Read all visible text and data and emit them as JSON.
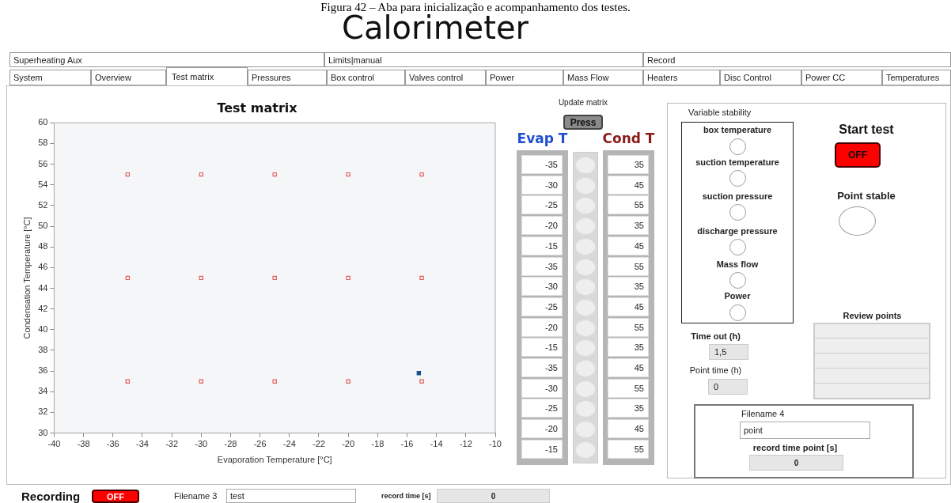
{
  "chart_data": [
    {
      "type": "scatter",
      "title": "Test matrix",
      "xlabel": "Evaporation Temperature [°C]",
      "ylabel": "Condensation Temperature [°C]",
      "xlim": [
        -40,
        -10
      ],
      "xticks": [
        -40,
        -38,
        -36,
        -34,
        -32,
        -30,
        -28,
        -26,
        -24,
        -22,
        -20,
        -18,
        -16,
        -14,
        -12,
        -10
      ],
      "ylim": [
        30,
        60
      ],
      "yticks": [
        30,
        32,
        34,
        36,
        38,
        40,
        42,
        44,
        46,
        48,
        50,
        52,
        54,
        56,
        58,
        60
      ],
      "grid": false,
      "legend": false,
      "marker": "square",
      "series": [
        {
          "color": "#e06060",
          "x": [
            -35,
            -30,
            -25,
            -20,
            -15,
            -35,
            -30,
            -25,
            -20,
            -15,
            -35,
            -30,
            -25,
            -20,
            -15
          ],
          "values": [
            55,
            55,
            55,
            55,
            55,
            45,
            45,
            45,
            45,
            45,
            35,
            35,
            35,
            35,
            35
          ]
        },
        {
          "color": "#1a4f8f",
          "x": [
            -15.2
          ],
          "values": [
            35.8
          ]
        }
      ]
    },
    {
      "type": "other",
      "title": "Calorimeter",
      "annotations": [
        "Figura 42 – Aba para inicialização e acompanhamento dos testes.",
        "Superheating Aux",
        "Limits|manual",
        "Record",
        "System",
        "Overview",
        "Test matrix",
        "Pressures",
        "Box control",
        "Valves control",
        "Power",
        "Mass Flow",
        "Heaters",
        "Disc Control",
        "Power CC",
        "Temperatures",
        "Update matrix",
        "Press",
        "Variable stability",
        "box temperature",
        "suction temperature",
        "suction pressure",
        "discharge pressure",
        "Mass flow",
        "Power",
        "Start test",
        "OFF",
        "Point stable",
        "Review points",
        "Time out (h)",
        "1,5",
        "Point time (h)",
        "0",
        "Filename 4",
        "point",
        "record time point [s]",
        "0",
        "Recording",
        "OFF",
        "Filename 3",
        "test",
        "record time [s]",
        "0"
      ]
    },
    {
      "type": "heatmap",
      "categories": [
        "Evap T",
        "Cond T"
      ],
      "y_categories": [
        null,
        null,
        null,
        null,
        null,
        null,
        null,
        null,
        null,
        null,
        null,
        null,
        null,
        null,
        null
      ],
      "data_labels": true,
      "cells": [
        [
          -35,
          35
        ],
        [
          -30,
          45
        ],
        [
          -25,
          55
        ],
        [
          -20,
          35
        ],
        [
          -15,
          45
        ],
        [
          -35,
          55
        ],
        [
          -30,
          35
        ],
        [
          -25,
          45
        ],
        [
          -20,
          55
        ],
        [
          -15,
          35
        ],
        [
          -35,
          45
        ],
        [
          -30,
          55
        ],
        [
          -25,
          35
        ],
        [
          -20,
          45
        ],
        [
          -15,
          55
        ]
      ]
    }
  ]
}
